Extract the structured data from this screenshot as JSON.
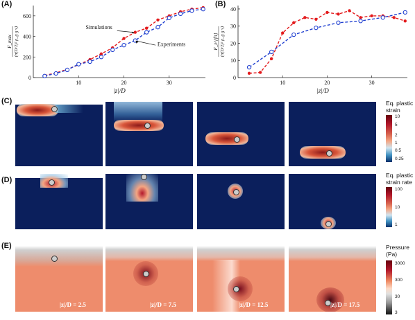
{
  "panels": {
    "A": "(A)",
    "B": "(B)",
    "C": "(C)",
    "D": "(D)",
    "E": "(E)"
  },
  "chart_data": [
    {
      "type": "line",
      "panel": "A",
      "xlabel": "|z|/D",
      "ylabel": "F_max / (π(D/2)² ρ_g g v)",
      "xlim": [
        0,
        38
      ],
      "ylim": [
        0,
        700
      ],
      "xticks": [
        10,
        20,
        30
      ],
      "yticks": [
        0,
        200,
        400,
        600
      ],
      "annotations": [
        "Simulations",
        "Experiments"
      ],
      "series": [
        {
          "name": "Simulations",
          "style": "red filled circles, dashed",
          "color": "#e31a1c",
          "x": [
            2.5,
            5,
            7.5,
            10,
            12.5,
            15,
            17.5,
            20,
            22.5,
            25,
            27.5,
            30,
            32.5,
            35,
            37.5
          ],
          "y": [
            20,
            45,
            80,
            125,
            175,
            230,
            290,
            380,
            440,
            480,
            560,
            600,
            640,
            665,
            680
          ]
        },
        {
          "name": "Experiments",
          "style": "blue open circles, dashed",
          "color": "#2040d0",
          "x": [
            2.5,
            5,
            7.5,
            10,
            12.5,
            15,
            17.5,
            20,
            22.5,
            25,
            27.5,
            30,
            32.5,
            35,
            37.5
          ],
          "y": [
            15,
            40,
            75,
            130,
            155,
            200,
            270,
            315,
            360,
            440,
            490,
            580,
            620,
            650,
            665
          ]
        }
      ]
    },
    {
      "type": "line",
      "panel": "B",
      "xlabel": "|z|/D",
      "ylabel": "F_z^{fit} / (π(D/2)² ρ_g g v)",
      "xlim": [
        0,
        38
      ],
      "ylim": [
        0,
        42
      ],
      "xticks": [
        10,
        20,
        30
      ],
      "yticks": [
        0,
        10,
        20,
        30,
        40
      ],
      "series": [
        {
          "name": "Simulations",
          "style": "red filled circles, dashed",
          "color": "#e31a1c",
          "x": [
            2.5,
            5,
            7.5,
            10,
            12.5,
            15,
            17.5,
            20,
            22.5,
            25,
            27.5,
            30,
            32.5,
            35,
            37.5
          ],
          "y": [
            2.5,
            3,
            11,
            26,
            32,
            35,
            34,
            38,
            37,
            39,
            35,
            36,
            36,
            35,
            33
          ]
        },
        {
          "name": "Experiments",
          "style": "blue open circles, dashed",
          "color": "#2040d0",
          "x": [
            2.5,
            7.5,
            12.5,
            17.5,
            22.5,
            27.5,
            32.5,
            37.5
          ],
          "y": [
            6,
            15,
            25,
            29,
            32,
            33,
            35,
            38
          ]
        }
      ]
    }
  ],
  "rows": {
    "C": {
      "colorbar_title": [
        "Eq. plastic",
        "strain"
      ],
      "ticks": [
        "10",
        "5",
        "2",
        "1",
        "0.5",
        "0.25"
      ]
    },
    "D": {
      "colorbar_title": [
        "Eq. plastic",
        "strain rate"
      ],
      "ticks": [
        "100",
        "10",
        "1"
      ]
    },
    "E": {
      "colorbar_title": [
        "Pressure",
        "(Pa)"
      ],
      "ticks": [
        "3000",
        "300",
        "30",
        "3"
      ]
    }
  },
  "depth_labels": [
    "|z|/D = 2.5",
    "|z|/D = 7.5",
    "|z|/D = 12.5",
    "|z|/D = 17.5"
  ],
  "colors": {
    "sim": "#e31a1c",
    "exp": "#2040d0",
    "navy": "#0b1f5c",
    "pressure_bg": "#ee8c6c"
  }
}
